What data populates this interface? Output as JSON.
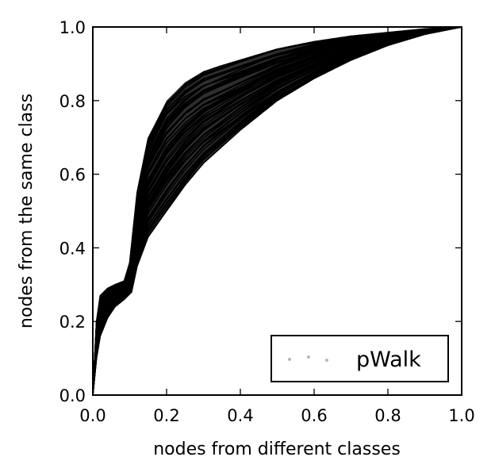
{
  "chart_data": {
    "type": "line",
    "title": "",
    "xlabel": "nodes from different classes",
    "ylabel": "nodes from the same class",
    "xlim": [
      0.0,
      1.0
    ],
    "ylim": [
      0.0,
      1.0
    ],
    "x_tick_labels": [
      "0.0",
      "0.2",
      "0.4",
      "0.6",
      "0.8",
      "1.0"
    ],
    "y_tick_labels": [
      "0.0",
      "0.2",
      "0.4",
      "0.6",
      "0.8",
      "1.0"
    ],
    "grid": false,
    "legend": {
      "position": "bottom-right",
      "entries": [
        "pWalk"
      ]
    },
    "line_color": "#000000",
    "band_note_series": [
      {
        "name": "",
        "role": "upper-envelope",
        "x": [
          0.0,
          0.01,
          0.02,
          0.04,
          0.06,
          0.085,
          0.1,
          0.12,
          0.15,
          0.2,
          0.25,
          0.3,
          0.4,
          0.5,
          0.6,
          0.7,
          0.8,
          0.9,
          1.0
        ],
        "y": [
          0.0,
          0.2,
          0.27,
          0.29,
          0.3,
          0.31,
          0.36,
          0.55,
          0.7,
          0.8,
          0.85,
          0.88,
          0.91,
          0.94,
          0.96,
          0.975,
          0.985,
          0.995,
          1.0
        ]
      },
      {
        "name": "",
        "role": "lower-envelope",
        "x": [
          0.0,
          0.01,
          0.02,
          0.04,
          0.06,
          0.085,
          0.105,
          0.12,
          0.15,
          0.2,
          0.25,
          0.3,
          0.4,
          0.5,
          0.6,
          0.7,
          0.8,
          0.9,
          1.0
        ],
        "y": [
          0.0,
          0.1,
          0.16,
          0.21,
          0.24,
          0.26,
          0.28,
          0.35,
          0.43,
          0.5,
          0.57,
          0.63,
          0.72,
          0.8,
          0.86,
          0.91,
          0.95,
          0.98,
          1.0
        ]
      }
    ],
    "series_count_estimate": 60
  }
}
